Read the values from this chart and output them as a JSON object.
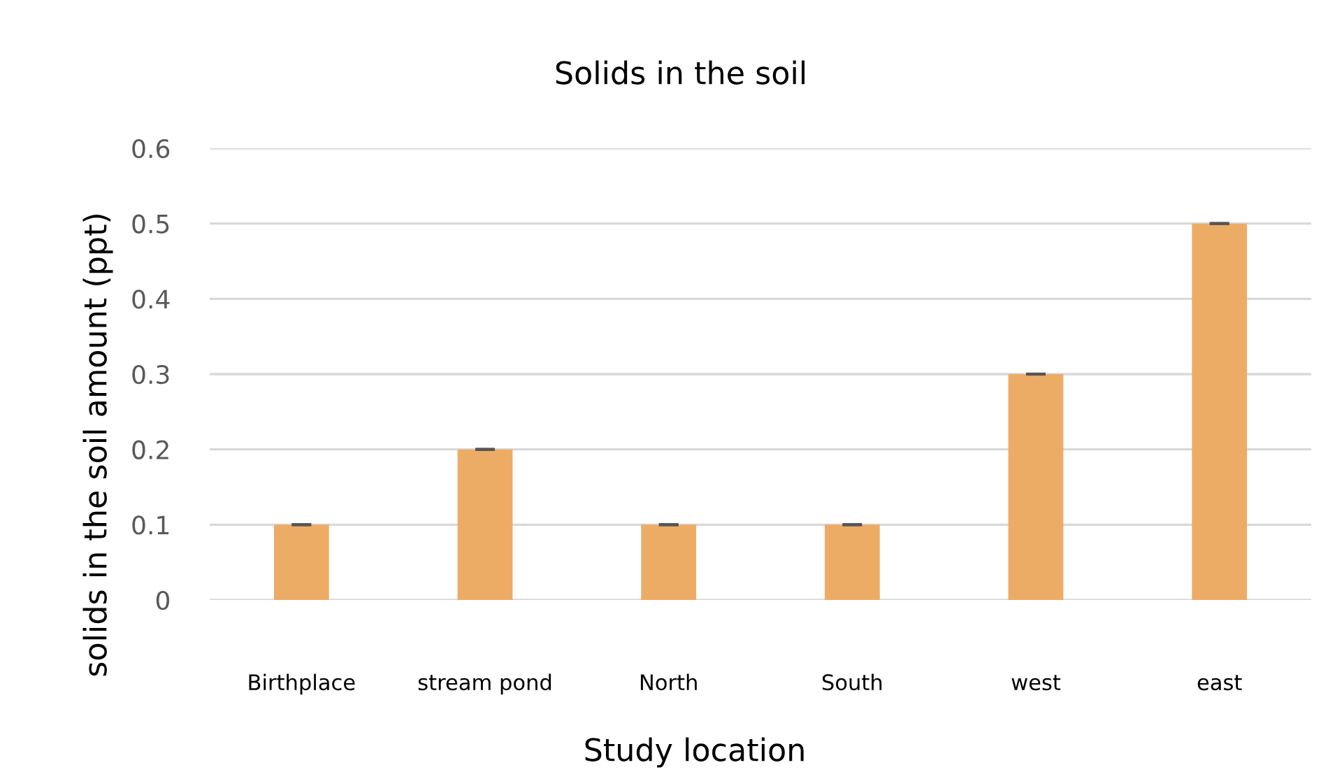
{
  "chart_data": {
    "type": "bar",
    "title": "Solids in the soil",
    "xlabel": "Study location",
    "ylabel": "solids in the soil amount (ppt)",
    "categories": [
      "Birthplace",
      "stream pond",
      "North",
      "South",
      "west",
      "east"
    ],
    "values": [
      0.1,
      0.2,
      0.1,
      0.1,
      0.3,
      0.5
    ],
    "errors": [
      0,
      0,
      0,
      0,
      0,
      0
    ],
    "color": "#edac66",
    "ylim": [
      0,
      0.6
    ],
    "yticks": [
      0,
      0.1,
      0.2,
      0.3,
      0.4,
      0.5,
      0.6
    ],
    "grid": "y",
    "legend": false
  }
}
